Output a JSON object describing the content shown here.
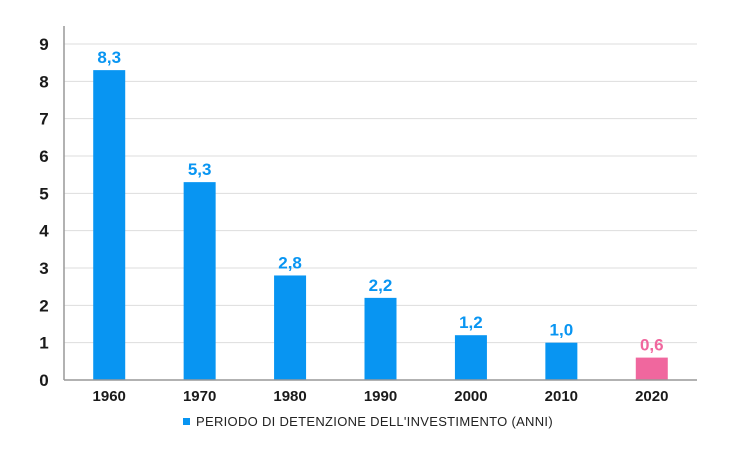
{
  "chart_data": {
    "type": "bar",
    "title": "",
    "xlabel": "",
    "ylabel": "",
    "categories": [
      "1960",
      "1970",
      "1980",
      "1990",
      "2000",
      "2010",
      "2020"
    ],
    "series": [
      {
        "name": "PERIODO DI DETENZIONE DELL'INVESTIMENTO (ANNI)",
        "values": [
          8.3,
          5.3,
          2.8,
          2.2,
          1.2,
          1.0,
          0.6
        ],
        "labels": [
          "8,3",
          "5,3",
          "2,8",
          "2,2",
          "1,2",
          "1,0",
          "0,6"
        ]
      }
    ],
    "highlight_index": 6,
    "ylim": [
      0,
      9
    ],
    "yticks": [
      "0",
      "1",
      "2",
      "3",
      "4",
      "5",
      "6",
      "7",
      "8",
      "9"
    ],
    "grid": true,
    "legend_position": "bottom-center",
    "colors": {
      "bar": "#0895f2",
      "highlight": "#f0679e",
      "grid": "#dddddd",
      "axis": "#999999"
    }
  }
}
